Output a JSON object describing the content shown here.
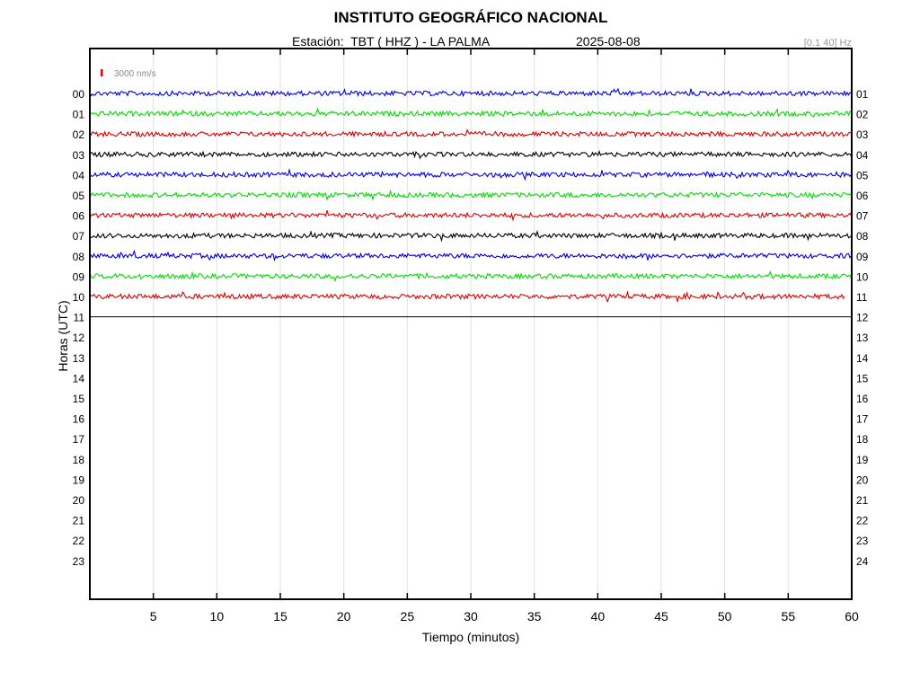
{
  "header": {
    "title": "INSTITUTO GEOGRÁFICO NACIONAL",
    "station": "Estación:  TBT ( HHZ ) - LA PALMA",
    "date": "2025-08-08",
    "filter": "[0.1 40] Hz"
  },
  "scale_bar": {
    "label": "3000 nm/s",
    "color": "#e00000"
  },
  "chart_data": {
    "type": "line",
    "title": "INSTITUTO GEOGRÁFICO NACIONAL",
    "xlabel": "Tiempo (minutos)",
    "ylabel": "Horas (UTC)",
    "xlim": [
      0,
      60
    ],
    "x_ticks": [
      5,
      10,
      15,
      20,
      25,
      30,
      35,
      40,
      45,
      50,
      55,
      60
    ],
    "left_hour_labels": [
      "00",
      "01",
      "02",
      "03",
      "04",
      "05",
      "06",
      "07",
      "08",
      "09",
      "10",
      "11",
      "12",
      "13",
      "14",
      "15",
      "16",
      "17",
      "18",
      "19",
      "20",
      "21",
      "22",
      "23"
    ],
    "right_hour_labels": [
      "01",
      "02",
      "03",
      "04",
      "05",
      "06",
      "07",
      "08",
      "09",
      "10",
      "11",
      "12",
      "13",
      "14",
      "15",
      "16",
      "17",
      "18",
      "19",
      "20",
      "21",
      "22",
      "23",
      "24"
    ],
    "grid": true,
    "trace_colors": [
      "#0000dd",
      "#00dd00",
      "#dd0000",
      "#000000"
    ],
    "traces": [
      {
        "hour": "00",
        "color": "#0000dd",
        "x_end": 60
      },
      {
        "hour": "01",
        "color": "#00dd00",
        "x_end": 60
      },
      {
        "hour": "02",
        "color": "#dd0000",
        "x_end": 60
      },
      {
        "hour": "03",
        "color": "#000000",
        "x_end": 60
      },
      {
        "hour": "04",
        "color": "#0000dd",
        "x_end": 60
      },
      {
        "hour": "05",
        "color": "#00dd00",
        "x_end": 60
      },
      {
        "hour": "06",
        "color": "#dd0000",
        "x_end": 60
      },
      {
        "hour": "07",
        "color": "#000000",
        "x_end": 60
      },
      {
        "hour": "08",
        "color": "#0000dd",
        "x_end": 60
      },
      {
        "hour": "09",
        "color": "#00dd00",
        "x_end": 60
      },
      {
        "hour": "10",
        "color": "#dd0000",
        "x_end": 59.5
      },
      {
        "hour": "11",
        "color": "#000000",
        "x_end": 60
      }
    ]
  }
}
